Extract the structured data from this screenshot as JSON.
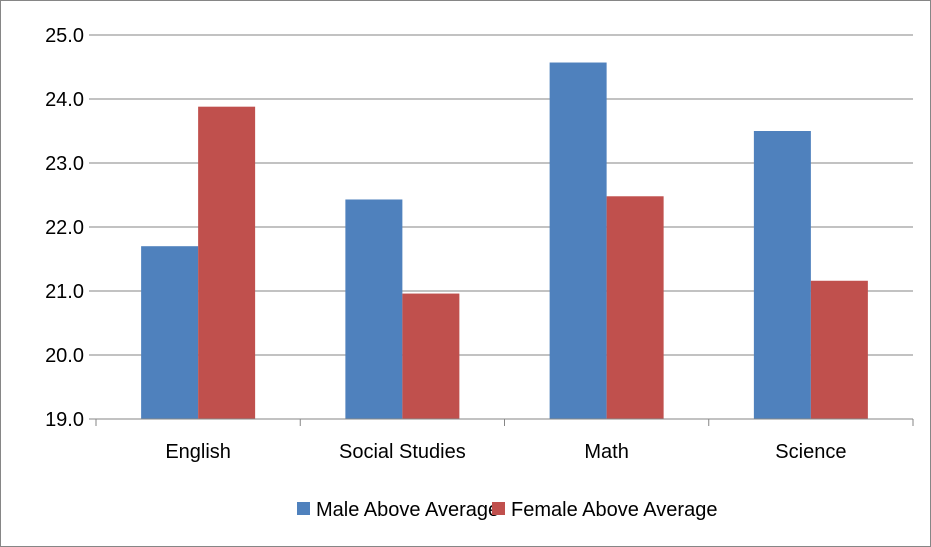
{
  "chart_data": {
    "type": "bar",
    "title": "",
    "xlabel": "",
    "ylabel": "",
    "categories": [
      "English",
      "Social Studies",
      "Math",
      "Science"
    ],
    "series": [
      {
        "name": "Male Above Average",
        "values": [
          21.7,
          22.43,
          24.57,
          23.5
        ],
        "color": "#4f81bd"
      },
      {
        "name": "Female Above Average",
        "values": [
          23.88,
          20.96,
          22.48,
          21.16
        ],
        "color": "#c0504d"
      }
    ],
    "ylim": [
      19.0,
      25.0
    ],
    "yticks": [
      "19.0",
      "20.0",
      "21.0",
      "22.0",
      "23.0",
      "24.0",
      "25.0"
    ],
    "grid": true,
    "legend_position": "bottom"
  }
}
